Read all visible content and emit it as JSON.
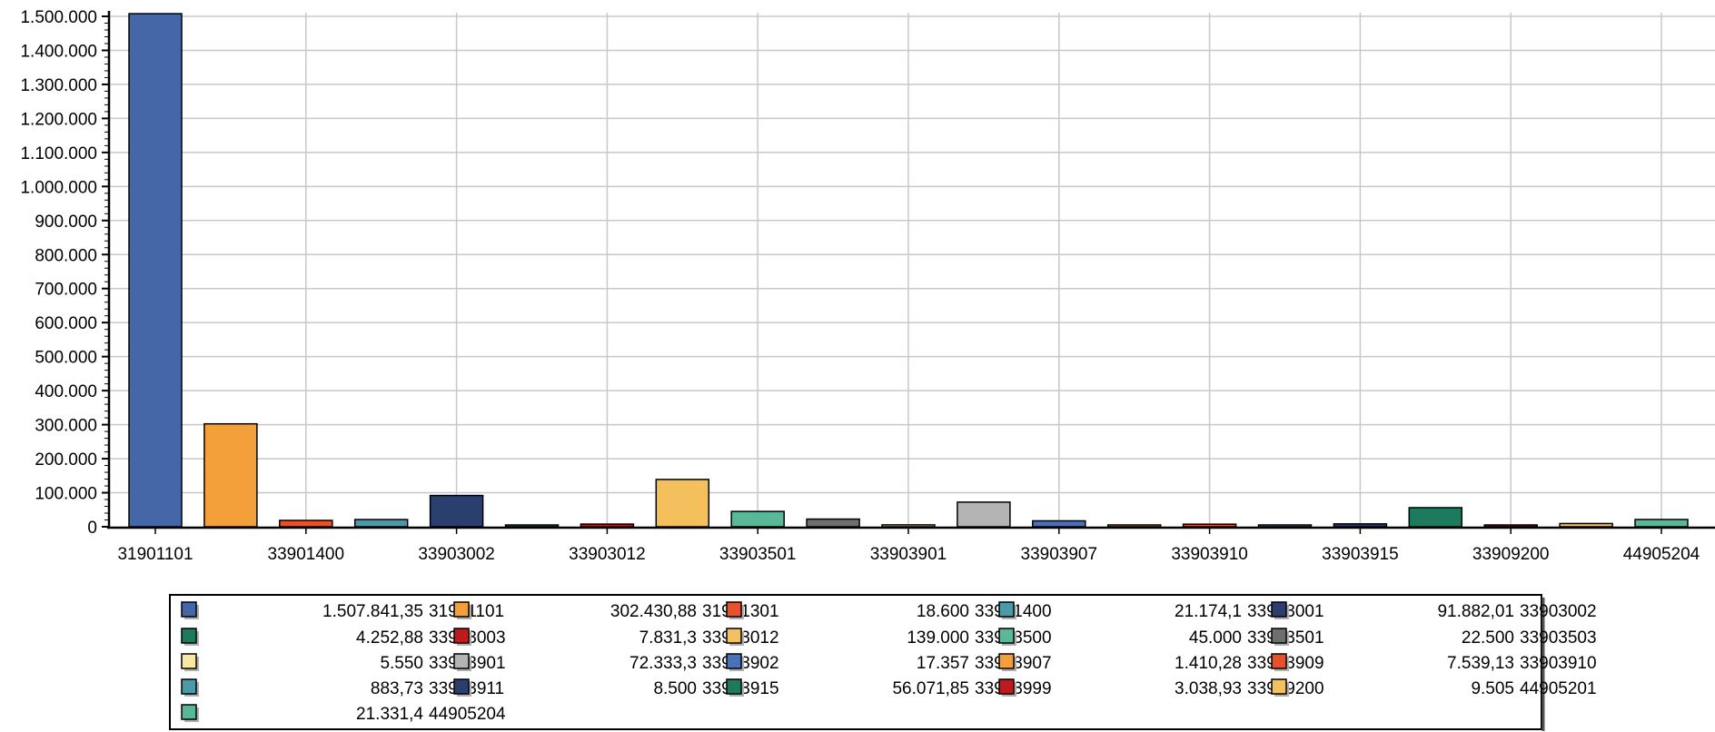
{
  "chart_data": {
    "type": "bar",
    "title": "",
    "xlabel": "",
    "ylabel": "",
    "ylim": [
      0,
      1500000
    ],
    "grid": true,
    "legend_position": "bottom",
    "y_ticks": [
      0,
      100000,
      200000,
      300000,
      400000,
      500000,
      600000,
      700000,
      800000,
      900000,
      1000000,
      1100000,
      1200000,
      1300000,
      1400000,
      1500000
    ],
    "y_tick_labels": [
      "0",
      "100.000",
      "200.000",
      "300.000",
      "400.000",
      "500.000",
      "600.000",
      "700.000",
      "800.000",
      "900.000",
      "1.000.000",
      "1.100.000",
      "1.200.000",
      "1.300.000",
      "1.400.000",
      "1.500.000"
    ],
    "x_tick_labels": [
      "31901101",
      "33901400",
      "33903002",
      "33903012",
      "33903501",
      "33903901",
      "33903907",
      "33903910",
      "33903915",
      "33909200",
      "44905204"
    ],
    "categories": [
      "31901101",
      "31901301",
      "33901400",
      "33903001",
      "33903002",
      "33903003",
      "33903012",
      "33903500",
      "33903501",
      "33903503",
      "33903901",
      "33903902",
      "33903907",
      "33903909",
      "33903910",
      "33903911",
      "33903915",
      "33903999",
      "33909200",
      "44905201",
      "44905204"
    ],
    "values": [
      1507841.35,
      302430.88,
      18600,
      21174.1,
      91882.01,
      4252.88,
      7831.3,
      139000,
      45000,
      22500,
      5550,
      72333.3,
      17357,
      1410.28,
      7539.13,
      883.73,
      8500,
      56071.85,
      3038.93,
      9505,
      21331.4
    ],
    "value_labels": [
      "1.507.841,35",
      "302.430,88",
      "18.600",
      "21.174,1",
      "91.882,01",
      "4.252,88",
      "7.831,3",
      "139.000",
      "45.000",
      "22.500",
      "5.550",
      "72.333,3",
      "17.357",
      "1.410,28",
      "7.539,13",
      "883,73",
      "8.500",
      "56.071,85",
      "3.038,93",
      "9.505",
      "21.331,4"
    ],
    "colors": [
      "#4567a7",
      "#f4a03a",
      "#e8522a",
      "#4a9aaa",
      "#2a3f6e",
      "#1e7a5e",
      "#c0191e",
      "#f4c05e",
      "#5ab89a",
      "#6e6e6e",
      "#f8eaa0",
      "#b4b4b4",
      "#4a72b8",
      "#f4a03a",
      "#e8522a",
      "#4a9aaa",
      "#2a3f6e",
      "#1e7a5e",
      "#c0191e",
      "#f4c05e",
      "#5ab89a"
    ]
  }
}
